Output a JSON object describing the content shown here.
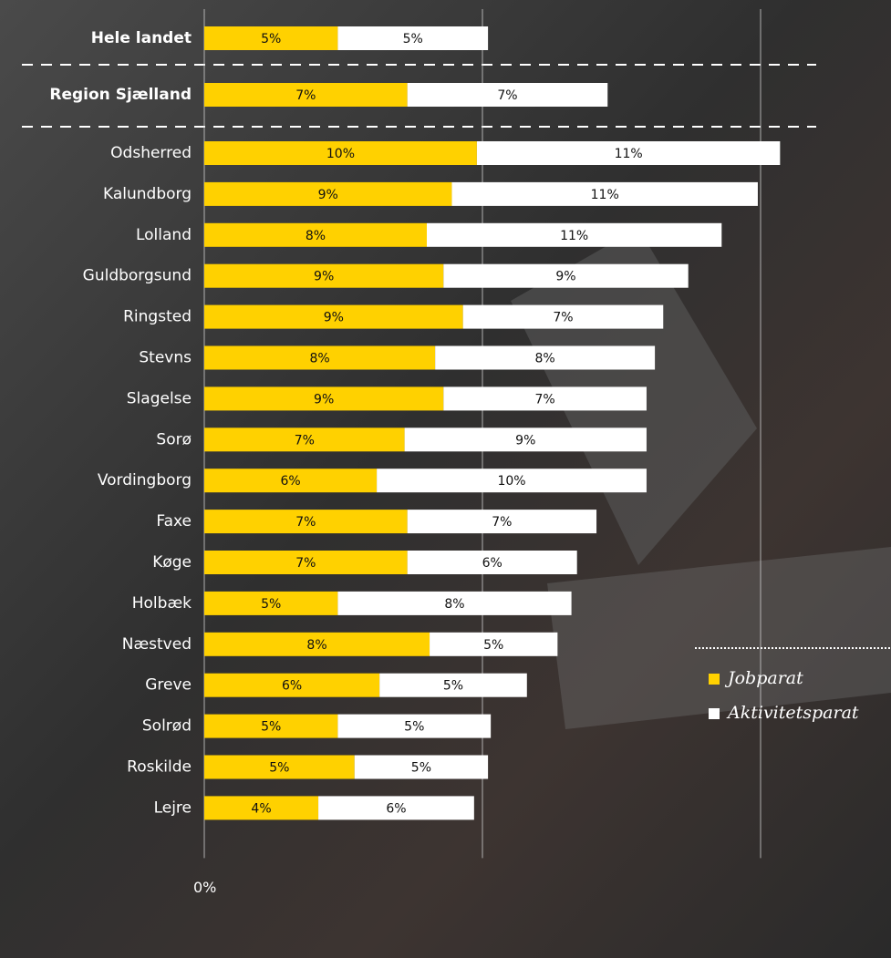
{
  "chart_data": {
    "type": "stacked-barh",
    "categories": [
      "Hele landet",
      "Region Sjælland",
      "Odsherred",
      "Kalundborg",
      "Lolland",
      "Guldborgsund",
      "Ringsted",
      "Stevns",
      "Slagelse",
      "Sorø",
      "Vordingborg",
      "Faxe",
      "Køge",
      "Holbæk",
      "Næstved",
      "Greve",
      "Solrød",
      "Roskilde",
      "Lejre"
    ],
    "series": [
      {
        "name": "Jobparat",
        "color": "#ffd100",
        "values": [
          4.8,
          7.3,
          9.8,
          8.9,
          8.0,
          8.6,
          9.3,
          8.3,
          8.6,
          7.2,
          6.2,
          7.3,
          7.3,
          4.8,
          8.1,
          6.3,
          4.8,
          5.4,
          4.1
        ],
        "value_labels": [
          "5%",
          "7%",
          "10%",
          "9%",
          "8%",
          "9%",
          "9%",
          "8%",
          "9%",
          "7%",
          "6%",
          "7%",
          "7%",
          "5%",
          "8%",
          "6%",
          "5%",
          "5%",
          "4%"
        ]
      },
      {
        "name": "Aktivitetsparat",
        "color": "#ffffff",
        "values": [
          5.4,
          7.2,
          10.9,
          11.0,
          10.6,
          8.8,
          7.2,
          7.9,
          7.3,
          8.7,
          9.7,
          6.8,
          6.1,
          8.4,
          4.6,
          5.3,
          5.5,
          4.8,
          5.6
        ],
        "value_labels": [
          "5%",
          "7%",
          "11%",
          "11%",
          "11%",
          "9%",
          "7%",
          "8%",
          "7%",
          "9%",
          "10%",
          "7%",
          "6%",
          "8%",
          "5%",
          "5%",
          "5%",
          "5%",
          "6%"
        ]
      }
    ],
    "xlim": [
      0,
      24
    ],
    "xticks": [
      {
        "value": 0,
        "label": "0%"
      },
      {
        "value": 10,
        "label": null
      },
      {
        "value": 20,
        "label": null
      }
    ],
    "grid": true
  }
}
